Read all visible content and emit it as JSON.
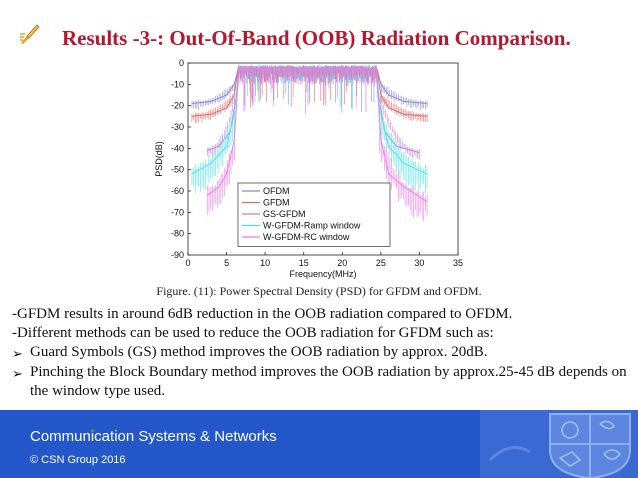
{
  "slide": {
    "title": "Results -3-: Out-Of-Band (OOB) Radiation Comparison.",
    "caption": "Figure. (11): Power Spectral Density (PSD) for GFDM and OFDM.",
    "paragraphs": [
      "-GFDM results in around 6dB reduction in the OOB radiation compared to OFDM.",
      "-Different methods can be used to reduce the OOB radiation for GFDM such as:"
    ],
    "bullets": [
      "Guard Symbols (GS) method improves the OOB radiation by  approx. 20dB.",
      "Pinching the Block Boundary method improves the OOB radiation by approx.25-45 dB depends on the window type used."
    ],
    "bullet_marker": "➢"
  },
  "footer": {
    "title": "Communication Systems & Networks",
    "copyright": "© CSN Group 2016",
    "background": "#2457c9"
  },
  "chart_data": {
    "type": "line",
    "xlabel": "Frequency(MHz)",
    "ylabel": "PSD(dB)",
    "xlim": [
      0,
      35
    ],
    "ylim": [
      -90,
      0
    ],
    "xticks": [
      0,
      5,
      10,
      15,
      20,
      25,
      30,
      35
    ],
    "yticks": [
      0,
      -10,
      -20,
      -30,
      -40,
      -50,
      -60,
      -70,
      -80,
      -90
    ],
    "legend_position": "bottom-center",
    "grid": false,
    "series": [
      {
        "name": "OFDM",
        "color": "#8a8acf",
        "values": [
          {
            "x": 0.5,
            "y": -19
          },
          {
            "x": 3,
            "y": -18
          },
          {
            "x": 5,
            "y": -15
          },
          {
            "x": 6,
            "y": -10
          },
          {
            "x": 6.5,
            "y": -3
          },
          {
            "x": 24.5,
            "y": -3
          },
          {
            "x": 25,
            "y": -10
          },
          {
            "x": 26,
            "y": -15
          },
          {
            "x": 28,
            "y": -18
          },
          {
            "x": 31,
            "y": -19
          }
        ]
      },
      {
        "name": "GFDM",
        "color": "#e26a6a",
        "values": [
          {
            "x": 0.5,
            "y": -25
          },
          {
            "x": 3,
            "y": -24
          },
          {
            "x": 5,
            "y": -21
          },
          {
            "x": 6,
            "y": -15
          },
          {
            "x": 6.5,
            "y": -3
          },
          {
            "x": 24.5,
            "y": -3
          },
          {
            "x": 25,
            "y": -15
          },
          {
            "x": 26,
            "y": -21
          },
          {
            "x": 28,
            "y": -24
          },
          {
            "x": 31,
            "y": -25
          }
        ]
      },
      {
        "name": "GS-GFDM",
        "color": "#c97ad6",
        "values": [
          {
            "x": 2.5,
            "y": -41
          },
          {
            "x": 4,
            "y": -39
          },
          {
            "x": 5.5,
            "y": -32
          },
          {
            "x": 6.3,
            "y": -15
          },
          {
            "x": 6.6,
            "y": -3
          },
          {
            "x": 24.4,
            "y": -3
          },
          {
            "x": 24.7,
            "y": -15
          },
          {
            "x": 25.5,
            "y": -32
          },
          {
            "x": 27,
            "y": -39
          },
          {
            "x": 30,
            "y": -42
          }
        ]
      },
      {
        "name": "W-GFDM-Ramp window",
        "color": "#4fe0ec",
        "values": [
          {
            "x": 0.5,
            "y": -52
          },
          {
            "x": 3,
            "y": -47
          },
          {
            "x": 5,
            "y": -39
          },
          {
            "x": 6,
            "y": -24
          },
          {
            "x": 6.6,
            "y": -3
          },
          {
            "x": 24.4,
            "y": -3
          },
          {
            "x": 25,
            "y": -24
          },
          {
            "x": 26,
            "y": -39
          },
          {
            "x": 28,
            "y": -47
          },
          {
            "x": 31,
            "y": -52
          }
        ]
      },
      {
        "name": "W-GFDM-RC window",
        "color": "#f07ae8",
        "values": [
          {
            "x": 2.5,
            "y": -62
          },
          {
            "x": 4,
            "y": -58
          },
          {
            "x": 5,
            "y": -52
          },
          {
            "x": 6,
            "y": -36
          },
          {
            "x": 6.6,
            "y": -3
          },
          {
            "x": 24.4,
            "y": -3
          },
          {
            "x": 25,
            "y": -36
          },
          {
            "x": 26,
            "y": -52
          },
          {
            "x": 28,
            "y": -58
          },
          {
            "x": 31,
            "y": -65
          }
        ]
      }
    ]
  }
}
